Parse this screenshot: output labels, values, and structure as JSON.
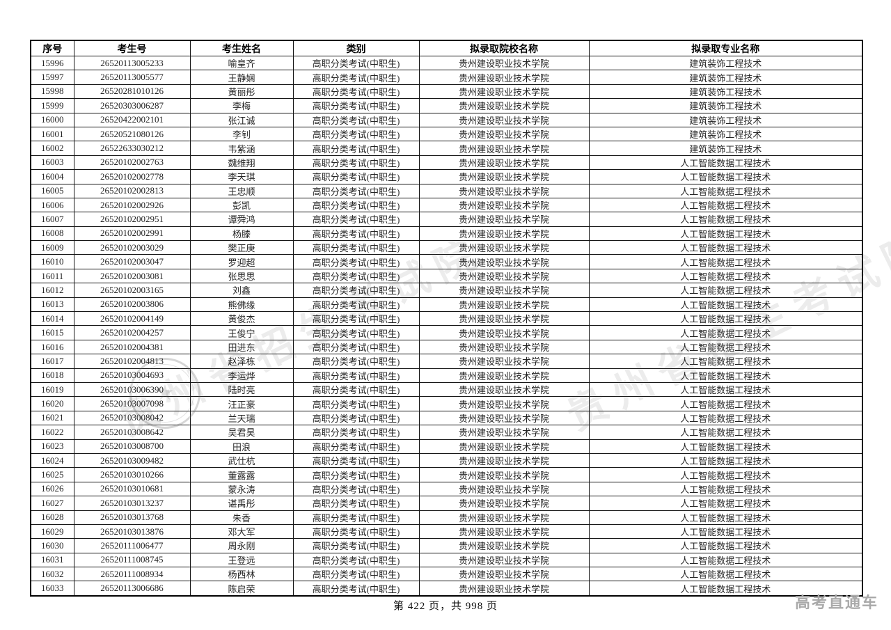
{
  "page": {
    "footer": "第 422 页，共 998 页",
    "brand": "高考直通车"
  },
  "watermark": {
    "diagonal_text": "贵州省招生考试院"
  },
  "table": {
    "headers": [
      "序号",
      "考生号",
      "考生姓名",
      "类别",
      "拟录取院校名称",
      "拟录取专业名称"
    ],
    "rows": [
      [
        "15996",
        "26520113005233",
        "喻皇齐",
        "高职分类考试(中职生)",
        "贵州建设职业技术学院",
        "建筑装饰工程技术"
      ],
      [
        "15997",
        "26520113005577",
        "王静娴",
        "高职分类考试(中职生)",
        "贵州建设职业技术学院",
        "建筑装饰工程技术"
      ],
      [
        "15998",
        "26520281010126",
        "黄丽彤",
        "高职分类考试(中职生)",
        "贵州建设职业技术学院",
        "建筑装饰工程技术"
      ],
      [
        "15999",
        "26520303006287",
        "李梅",
        "高职分类考试(中职生)",
        "贵州建设职业技术学院",
        "建筑装饰工程技术"
      ],
      [
        "16000",
        "26520422002101",
        "张江诚",
        "高职分类考试(中职生)",
        "贵州建设职业技术学院",
        "建筑装饰工程技术"
      ],
      [
        "16001",
        "26520521080126",
        "李钊",
        "高职分类考试(中职生)",
        "贵州建设职业技术学院",
        "建筑装饰工程技术"
      ],
      [
        "16002",
        "26522633030212",
        "韦紫涵",
        "高职分类考试(中职生)",
        "贵州建设职业技术学院",
        "建筑装饰工程技术"
      ],
      [
        "16003",
        "26520102002763",
        "魏维翔",
        "高职分类考试(中职生)",
        "贵州建设职业技术学院",
        "人工智能数据工程技术"
      ],
      [
        "16004",
        "26520102002778",
        "李天琪",
        "高职分类考试(中职生)",
        "贵州建设职业技术学院",
        "人工智能数据工程技术"
      ],
      [
        "16005",
        "26520102002813",
        "王忠顺",
        "高职分类考试(中职生)",
        "贵州建设职业技术学院",
        "人工智能数据工程技术"
      ],
      [
        "16006",
        "26520102002926",
        "彭凯",
        "高职分类考试(中职生)",
        "贵州建设职业技术学院",
        "人工智能数据工程技术"
      ],
      [
        "16007",
        "26520102002951",
        "谭舜鸿",
        "高职分类考试(中职生)",
        "贵州建设职业技术学院",
        "人工智能数据工程技术"
      ],
      [
        "16008",
        "26520102002991",
        "杨滕",
        "高职分类考试(中职生)",
        "贵州建设职业技术学院",
        "人工智能数据工程技术"
      ],
      [
        "16009",
        "26520102003029",
        "樊正庚",
        "高职分类考试(中职生)",
        "贵州建设职业技术学院",
        "人工智能数据工程技术"
      ],
      [
        "16010",
        "26520102003047",
        "罗迎超",
        "高职分类考试(中职生)",
        "贵州建设职业技术学院",
        "人工智能数据工程技术"
      ],
      [
        "16011",
        "26520102003081",
        "张思思",
        "高职分类考试(中职生)",
        "贵州建设职业技术学院",
        "人工智能数据工程技术"
      ],
      [
        "16012",
        "26520102003165",
        "刘鑫",
        "高职分类考试(中职生)",
        "贵州建设职业技术学院",
        "人工智能数据工程技术"
      ],
      [
        "16013",
        "26520102003806",
        "熊佛缘",
        "高职分类考试(中职生)",
        "贵州建设职业技术学院",
        "人工智能数据工程技术"
      ],
      [
        "16014",
        "26520102004149",
        "黄俊杰",
        "高职分类考试(中职生)",
        "贵州建设职业技术学院",
        "人工智能数据工程技术"
      ],
      [
        "16015",
        "26520102004257",
        "王俊宁",
        "高职分类考试(中职生)",
        "贵州建设职业技术学院",
        "人工智能数据工程技术"
      ],
      [
        "16016",
        "26520102004381",
        "田进东",
        "高职分类考试(中职生)",
        "贵州建设职业技术学院",
        "人工智能数据工程技术"
      ],
      [
        "16017",
        "26520102004813",
        "赵泽栋",
        "高职分类考试(中职生)",
        "贵州建设职业技术学院",
        "人工智能数据工程技术"
      ],
      [
        "16018",
        "26520103004693",
        "李运烨",
        "高职分类考试(中职生)",
        "贵州建设职业技术学院",
        "人工智能数据工程技术"
      ],
      [
        "16019",
        "26520103006390",
        "陆时亮",
        "高职分类考试(中职生)",
        "贵州建设职业技术学院",
        "人工智能数据工程技术"
      ],
      [
        "16020",
        "26520103007098",
        "汪正豪",
        "高职分类考试(中职生)",
        "贵州建设职业技术学院",
        "人工智能数据工程技术"
      ],
      [
        "16021",
        "26520103008042",
        "兰天瑞",
        "高职分类考试(中职生)",
        "贵州建设职业技术学院",
        "人工智能数据工程技术"
      ],
      [
        "16022",
        "26520103008642",
        "吴君昊",
        "高职分类考试(中职生)",
        "贵州建设职业技术学院",
        "人工智能数据工程技术"
      ],
      [
        "16023",
        "26520103008700",
        "田浪",
        "高职分类考试(中职生)",
        "贵州建设职业技术学院",
        "人工智能数据工程技术"
      ],
      [
        "16024",
        "26520103009482",
        "武仕杭",
        "高职分类考试(中职生)",
        "贵州建设职业技术学院",
        "人工智能数据工程技术"
      ],
      [
        "16025",
        "26520103010266",
        "董露露",
        "高职分类考试(中职生)",
        "贵州建设职业技术学院",
        "人工智能数据工程技术"
      ],
      [
        "16026",
        "26520103010681",
        "蒙永涛",
        "高职分类考试(中职生)",
        "贵州建设职业技术学院",
        "人工智能数据工程技术"
      ],
      [
        "16027",
        "26520103013237",
        "谌禹彤",
        "高职分类考试(中职生)",
        "贵州建设职业技术学院",
        "人工智能数据工程技术"
      ],
      [
        "16028",
        "26520103013768",
        "朱香",
        "高职分类考试(中职生)",
        "贵州建设职业技术学院",
        "人工智能数据工程技术"
      ],
      [
        "16029",
        "26520103013876",
        "邓大军",
        "高职分类考试(中职生)",
        "贵州建设职业技术学院",
        "人工智能数据工程技术"
      ],
      [
        "16030",
        "26520111006477",
        "周永刚",
        "高职分类考试(中职生)",
        "贵州建设职业技术学院",
        "人工智能数据工程技术"
      ],
      [
        "16031",
        "26520111008745",
        "王登远",
        "高职分类考试(中职生)",
        "贵州建设职业技术学院",
        "人工智能数据工程技术"
      ],
      [
        "16032",
        "26520111008934",
        "杨西林",
        "高职分类考试(中职生)",
        "贵州建设职业技术学院",
        "人工智能数据工程技术"
      ],
      [
        "16033",
        "26520113006686",
        "陈启荣",
        "高职分类考试(中职生)",
        "贵州建设职业技术学院",
        "人工智能数据工程技术"
      ]
    ]
  }
}
